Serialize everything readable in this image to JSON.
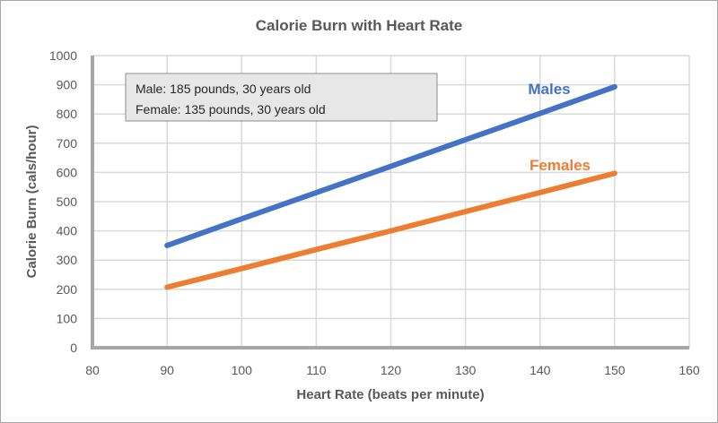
{
  "chart_data": {
    "type": "line",
    "title": "Calorie Burn with Heart Rate",
    "xlabel": "Heart Rate (beats per minute)",
    "ylabel": "Calorie Burn (cals/hour)",
    "xlim": [
      80,
      160
    ],
    "ylim": [
      0,
      1000
    ],
    "xticks": [
      80,
      90,
      100,
      110,
      120,
      130,
      140,
      150,
      160
    ],
    "yticks": [
      0,
      100,
      200,
      300,
      400,
      500,
      600,
      700,
      800,
      900,
      1000
    ],
    "grid": true,
    "annotation": [
      "Male: 185 pounds, 30 years old",
      "Female: 135 pounds, 30 years old"
    ],
    "x": [
      90,
      100,
      110,
      120,
      130,
      140,
      150
    ],
    "series": [
      {
        "name": "Males",
        "color": "#4472C4",
        "values": [
          350,
          441,
          531,
          621,
          712,
          802,
          893
        ]
      },
      {
        "name": "Females",
        "color": "#ED7D31",
        "values": [
          207,
          271,
          336,
          400,
          466,
          531,
          597
        ]
      }
    ]
  }
}
